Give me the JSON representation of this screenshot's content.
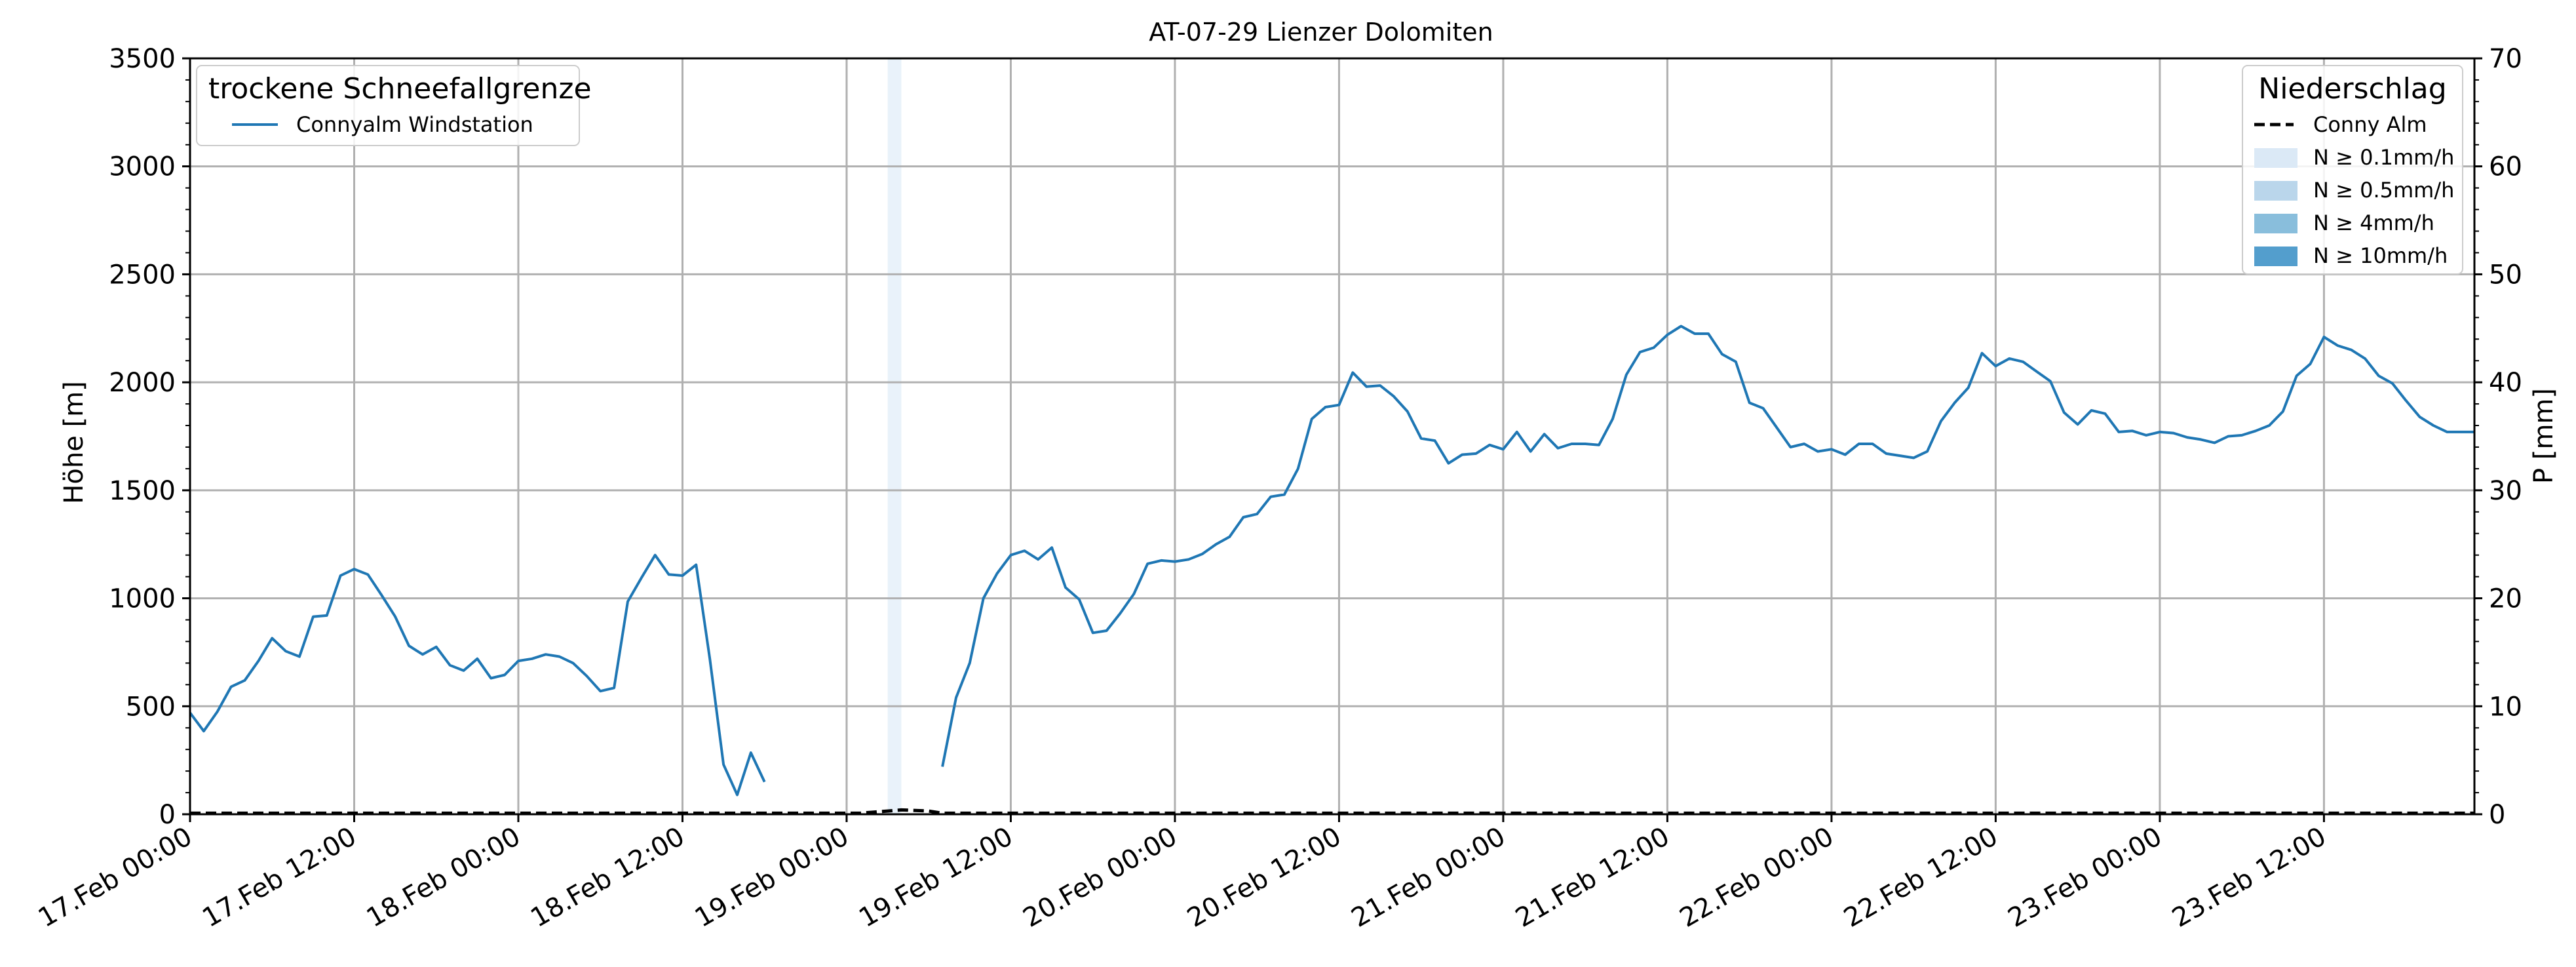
{
  "chart_data": {
    "type": "line",
    "title": "AT-07-29 Lienzer Dolomiten",
    "ylabel_left": "Höhe [m]",
    "ylabel_right": "P [mm]",
    "ylim_left": [
      0,
      3500
    ],
    "ylim_right": [
      0,
      70
    ],
    "yticks_left": [
      "0",
      "500",
      "1000",
      "1500",
      "2000",
      "2500",
      "3000",
      "3500"
    ],
    "yticks_right": [
      "0",
      "10",
      "20",
      "30",
      "40",
      "50",
      "60",
      "70"
    ],
    "x_range_hours": [
      0,
      167
    ],
    "xticks": [
      "17.Feb 00:00",
      "17.Feb 12:00",
      "18.Feb 00:00",
      "18.Feb 12:00",
      "19.Feb 00:00",
      "19.Feb 12:00",
      "20.Feb 00:00",
      "20.Feb 12:00",
      "21.Feb 00:00",
      "21.Feb 12:00",
      "22.Feb 00:00",
      "22.Feb 12:00",
      "23.Feb 00:00",
      "23.Feb 12:00"
    ],
    "grid": true,
    "legend_left": {
      "title": "trockene Schneefallgrenze",
      "placement": "top-left",
      "entries": [
        "Connyalm Windstation"
      ]
    },
    "legend_right": {
      "title": "Niederschlag",
      "placement": "top-right",
      "entries": [
        "Conny Alm",
        "N ≥ 0.1mm/h",
        "N ≥ 0.5mm/h",
        "N ≥ 4mm/h",
        "N ≥ 10mm/h"
      ],
      "colors": [
        "#000000",
        "#dbe9f6",
        "#bad6eb",
        "#89bedc",
        "#539ecd"
      ]
    },
    "colors": {
      "line": "#1f77b4",
      "grid": "#b0b0b0",
      "precip_band": "#dbe9f6"
    },
    "precip_band_hours": [
      51,
      52
    ],
    "series": [
      {
        "name": "Connyalm Windstation",
        "x": [
          0,
          1,
          2,
          3,
          4,
          5,
          6,
          7,
          8,
          9,
          10,
          11,
          12,
          13,
          14,
          15,
          16,
          17,
          18,
          19,
          20,
          21,
          22,
          23,
          24,
          25,
          26,
          27,
          28,
          29,
          30,
          31,
          32,
          33,
          34,
          35,
          36,
          37,
          38,
          39,
          40,
          41,
          42,
          43,
          44,
          45,
          46,
          47,
          48,
          49,
          50,
          51,
          52,
          53,
          54,
          55,
          56,
          57,
          58,
          59,
          60,
          61,
          62,
          63,
          64,
          65,
          66,
          67,
          68,
          69,
          70,
          71,
          72,
          73,
          74,
          75,
          76,
          77,
          78,
          79,
          80,
          81,
          82,
          83,
          84,
          85,
          86,
          87,
          88,
          89,
          90,
          91,
          92,
          93,
          94,
          95,
          96,
          97,
          98,
          99,
          100,
          101,
          102,
          103,
          104,
          105,
          106,
          107,
          108,
          109,
          110,
          111,
          112,
          113,
          114,
          115,
          116,
          117,
          118,
          119,
          120,
          121,
          122,
          123,
          124,
          125,
          126,
          127,
          128,
          129,
          130,
          131,
          132,
          133,
          134,
          135,
          136,
          137,
          138,
          139,
          140,
          141,
          142,
          143,
          144,
          145,
          146,
          147,
          148,
          149,
          150,
          151,
          152,
          153,
          154,
          155,
          156,
          157,
          158,
          159,
          160,
          161,
          162,
          163,
          164,
          165,
          166,
          167
        ],
        "y": [
          470,
          385,
          475,
          590,
          620,
          710,
          815,
          755,
          730,
          915,
          920,
          1105,
          1135,
          1110,
          1015,
          915,
          780,
          740,
          775,
          690,
          665,
          720,
          630,
          645,
          710,
          720,
          740,
          730,
          700,
          640,
          570,
          585,
          985,
          1095,
          1200,
          1110,
          1105,
          1155,
          720,
          230,
          90,
          285,
          150,
          null,
          null,
          null,
          null,
          null,
          null,
          null,
          null,
          null,
          null,
          null,
          null,
          220,
          540,
          700,
          1000,
          1115,
          1200,
          1220,
          1180,
          1235,
          1050,
          995,
          840,
          850,
          930,
          1020,
          1160,
          1175,
          1170,
          1180,
          1205,
          1250,
          1285,
          1375,
          1390,
          1470,
          1480,
          1600,
          1830,
          1885,
          1895,
          2045,
          1980,
          1985,
          1935,
          1865,
          1740,
          1730,
          1625,
          1665,
          1670,
          1710,
          1690,
          1770,
          1680,
          1760,
          1695,
          1715,
          1715,
          1710,
          1830,
          2035,
          2140,
          2160,
          2220,
          2260,
          2225,
          2225,
          2130,
          2095,
          1905,
          1880,
          1790,
          1700,
          1715,
          1680,
          1690,
          1665,
          1715,
          1715,
          1670,
          1660,
          1650,
          1680,
          1820,
          1905,
          1975,
          2135,
          2075,
          2110,
          2095,
          2050,
          2005,
          1860,
          1805,
          1870,
          1855,
          1770,
          1775,
          1755,
          1770,
          1765,
          1745,
          1735,
          1720,
          1750,
          1755,
          1775,
          1800,
          1865,
          2030,
          2085,
          2210,
          2170,
          2150,
          2110,
          2030,
          1995,
          1915,
          1840,
          1800,
          1770,
          1770,
          1770
        ]
      },
      {
        "name": "Conny Alm",
        "x": [
          0,
          49,
          50,
          51,
          52,
          53,
          54,
          55,
          167
        ],
        "y": [
          0.1,
          0.1,
          0.2,
          0.3,
          0.4,
          0.35,
          0.3,
          0.1,
          0.1
        ]
      }
    ]
  }
}
